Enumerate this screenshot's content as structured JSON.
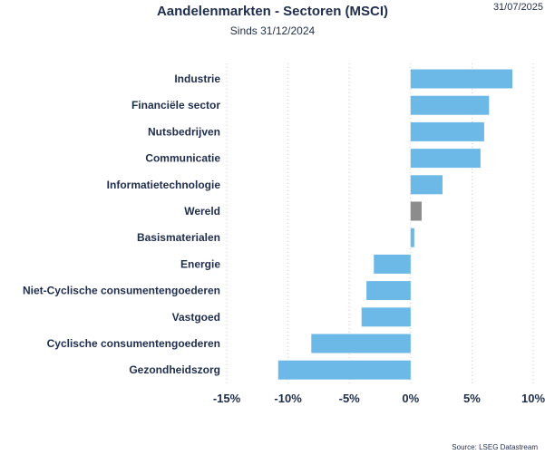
{
  "header": {
    "title": "Aandelenmarkten - Sectoren (MSCI)",
    "subtitle": "Sinds 31/12/2024",
    "date": "31/07/2025"
  },
  "footer": {
    "source": "Source: LSEG Datastream"
  },
  "colors": {
    "bar": "#6cb8e6",
    "highlight": "#8c8c8c",
    "grid": "#c8c8c8",
    "text": "#1f2d4d"
  },
  "chart_data": {
    "type": "bar",
    "orientation": "horizontal",
    "title": "Aandelenmarkten - Sectoren (MSCI)",
    "subtitle": "Sinds 31/12/2024",
    "categories": [
      "Industrie",
      "Financiële sector",
      "Nutsbedrijven",
      "Communicatie",
      "Informatietechnologie",
      "Wereld",
      "Basismaterialen",
      "Energie",
      "Niet-Cyclische consumentengoederen",
      "Vastgoed",
      "Cyclische consumentengoederen",
      "Gezondheidszorg"
    ],
    "values": [
      8.3,
      6.4,
      6.0,
      5.7,
      2.6,
      0.9,
      0.3,
      -3.0,
      -3.6,
      -4.0,
      -8.1,
      -10.8
    ],
    "highlight_category": "Wereld",
    "xlim": [
      -15,
      10
    ],
    "xticks": [
      -15,
      -10,
      -5,
      0,
      5,
      10
    ],
    "xtick_labels": [
      "-15%",
      "-10%",
      "-5%",
      "0%",
      "5%",
      "10%"
    ],
    "grid": "vertical dotted",
    "legend": "none"
  }
}
